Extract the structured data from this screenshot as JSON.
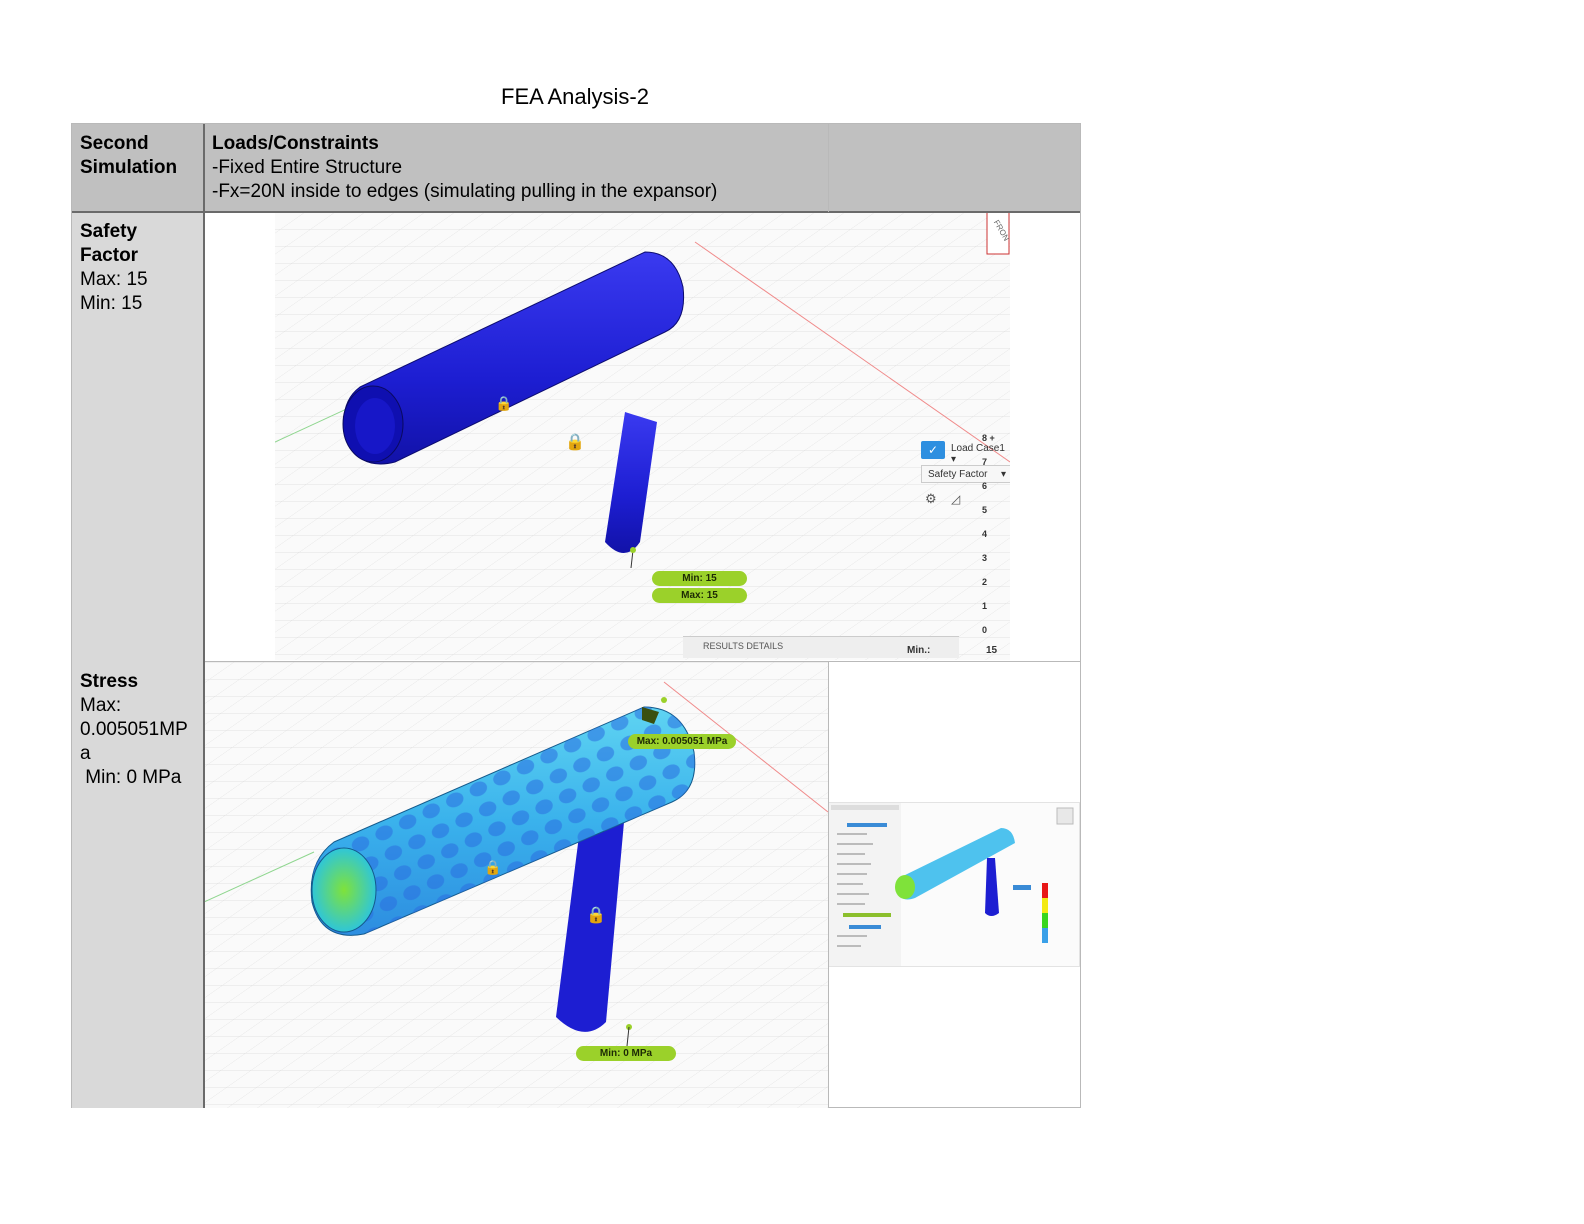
{
  "document": {
    "title": "FEA Analysis-2"
  },
  "table": {
    "header": {
      "col1": "Second Simulation",
      "col2_title": "Loads/Constraints",
      "col2_line1": "-Fixed Entire Structure",
      "col2_line2": "-Fx=20N inside to edges (simulating pulling in the expansor)"
    },
    "row_safety": {
      "title_line1": "Safety",
      "title_line2": "Factor",
      "max": "Max: 15",
      "min": "Min: 15"
    },
    "row_stress": {
      "title": "Stress",
      "max_label": "Max:",
      "max_value_line1": "0.005051MP",
      "max_value_line2": "a",
      "min": " Min: 0 MPa"
    }
  },
  "safety_image": {
    "view_cube_label": "FRON",
    "probe_min": "Min: 15",
    "probe_max": "Max: 15",
    "load_case": "Load Case1",
    "result_type": "Safety Factor",
    "legend_ticks": [
      "8 +",
      "7",
      "6",
      "5",
      "4",
      "3",
      "2",
      "1",
      "0"
    ],
    "legend_colors": [
      "#1f1fd8",
      "#1f1fd8",
      "#38d61d",
      "#38d61d",
      "#f3ea12",
      "#f3ea12",
      "#e81717"
    ],
    "results_details": "RESULTS DETAILS",
    "footer_min_label": "Min.:",
    "footer_min_value": "15"
  },
  "stress_image": {
    "probe_max": "Max: 0.005051 MPa",
    "probe_min": "Min: 0 MPa"
  }
}
